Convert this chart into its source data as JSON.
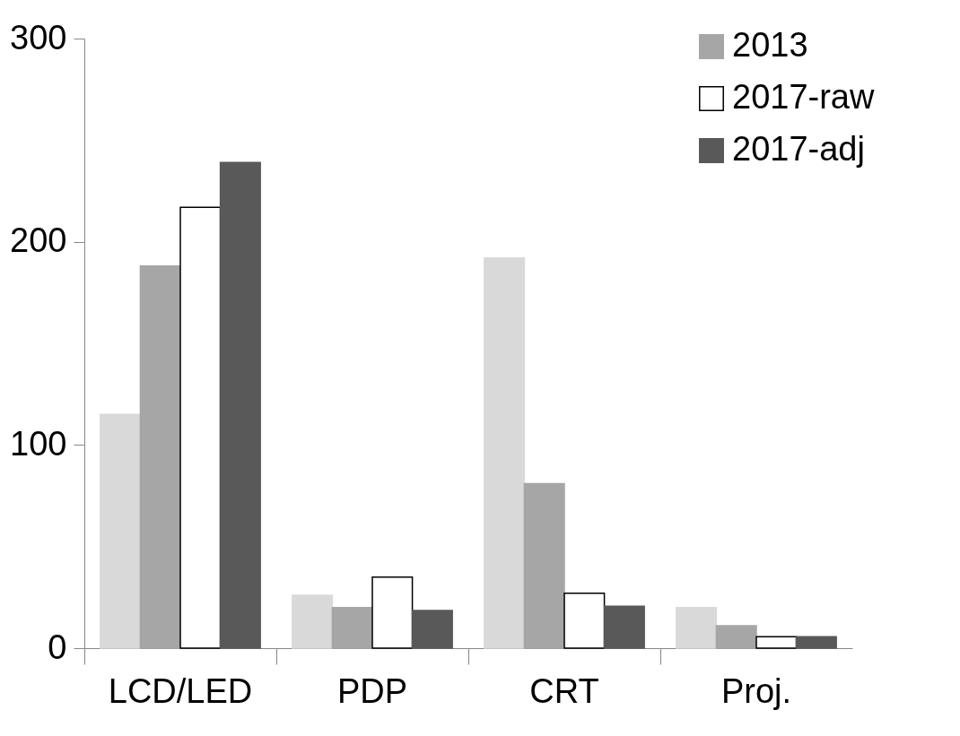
{
  "chart_data": {
    "type": "bar",
    "categories": [
      "LCD/LED",
      "PDP",
      "CRT",
      "Proj."
    ],
    "series": [
      {
        "color": "#d9d9d9",
        "values": [
          115,
          26,
          192,
          20
        ]
      },
      {
        "name": "2013",
        "color": "#a6a6a6",
        "values": [
          188,
          20,
          81,
          11
        ]
      },
      {
        "name": "2017-raw",
        "color": "#ffffff",
        "values": [
          217,
          35,
          27,
          5.6
        ]
      },
      {
        "name": "2017-adj",
        "color": "#595959",
        "values": [
          239,
          18.5,
          20.6,
          5.6
        ]
      }
    ],
    "ylim": [
      0,
      300
    ],
    "yticks": [
      0,
      100,
      200,
      300
    ],
    "grid": false,
    "legend": "top right"
  }
}
